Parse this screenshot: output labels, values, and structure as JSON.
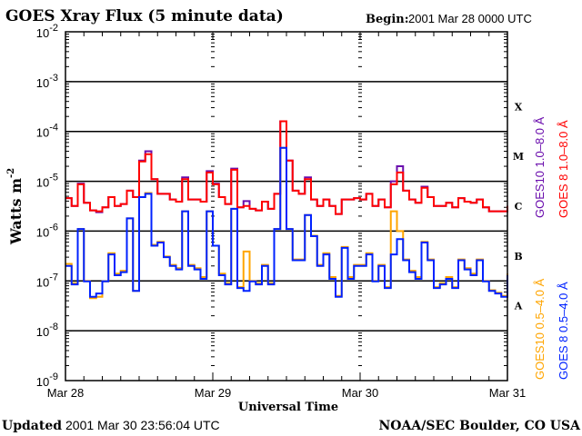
{
  "header": {
    "title": "GOES Xray Flux (5 minute data)",
    "begin_label": "Begin:",
    "begin_value": "2001 Mar 28 0000 UTC"
  },
  "footer": {
    "updated_label": "Updated",
    "updated_value": "2001 Mar 30 23:56:04 UTC",
    "credit": "NOAA/SEC Boulder, CO USA"
  },
  "chart_data": {
    "type": "line",
    "title": "GOES Xray Flux (5 minute data)",
    "xlabel": "Universal Time",
    "ylabel": "Watts m",
    "ylabel_sup": "-2",
    "yscale": "log",
    "ylim": [
      1e-09,
      0.01
    ],
    "ytick_base": "10",
    "ytick_exponents": [
      "-2",
      "-3",
      "-4",
      "-5",
      "-6",
      "-7",
      "-8",
      "-9"
    ],
    "xtick_labels": [
      "Mar 28",
      "Mar 29",
      "Mar 30",
      "Mar 31"
    ],
    "xlim": [
      "2001-03-28 00:00",
      "2001-03-31 00:00"
    ],
    "grid": "horizontal lines at each decade",
    "flare_classes": [
      "X",
      "M",
      "C",
      "B",
      "A"
    ],
    "x": [
      "03-28 00",
      "03-28 01",
      "03-28 02",
      "03-28 03",
      "03-28 04",
      "03-28 05",
      "03-28 06",
      "03-28 07",
      "03-28 08",
      "03-28 09",
      "03-28 10",
      "03-28 11",
      "03-28 12",
      "03-28 13",
      "03-28 14",
      "03-28 15",
      "03-28 16",
      "03-28 17",
      "03-28 18",
      "03-28 19",
      "03-28 20",
      "03-28 21",
      "03-28 22",
      "03-28 23",
      "03-29 00",
      "03-29 01",
      "03-29 02",
      "03-29 03",
      "03-29 04",
      "03-29 05",
      "03-29 06",
      "03-29 07",
      "03-29 08",
      "03-29 09",
      "03-29 10",
      "03-29 11",
      "03-29 12",
      "03-29 13",
      "03-29 14",
      "03-29 15",
      "03-29 16",
      "03-29 17",
      "03-29 18",
      "03-29 19",
      "03-29 20",
      "03-29 21",
      "03-29 22",
      "03-29 23",
      "03-30 00",
      "03-30 01",
      "03-30 02",
      "03-30 03",
      "03-30 04",
      "03-30 05",
      "03-30 06",
      "03-30 07",
      "03-30 08",
      "03-30 09",
      "03-30 10",
      "03-30 11",
      "03-30 12",
      "03-30 13",
      "03-30 14",
      "03-30 15",
      "03-30 16",
      "03-30 17",
      "03-30 18",
      "03-30 19",
      "03-30 20",
      "03-30 21",
      "03-30 22",
      "03-30 23",
      "03-31 00"
    ],
    "series": [
      {
        "name": "GOES10 1.0–8.0 Å",
        "color": "#6a0dad",
        "values": [
          4.6e-06,
          3.2e-06,
          9e-06,
          3.7e-06,
          2.6e-06,
          2.4e-06,
          3e-06,
          4.8e-06,
          3.2e-06,
          3.5e-06,
          6.5e-06,
          4.8e-06,
          2.6e-05,
          4e-05,
          1.1e-05,
          5.6e-06,
          5.6e-06,
          4.3e-06,
          3.9e-06,
          1.2e-05,
          4.3e-06,
          4.3e-06,
          3.9e-06,
          1.6e-05,
          9e-06,
          4.8e-06,
          3.5e-06,
          1.8e-05,
          3e-06,
          4e-06,
          2.8e-06,
          2.6e-06,
          3.9e-06,
          2.8e-06,
          5.6e-06,
          0.00016,
          2.6e-05,
          6.5e-06,
          5.6e-06,
          1.2e-05,
          4.3e-06,
          3.2e-06,
          4.3e-06,
          3.2e-06,
          2.2e-06,
          4.3e-06,
          4.3e-06,
          4.6e-06,
          4.3e-06,
          5.6e-06,
          3.2e-06,
          4.3e-06,
          3e-06,
          1e-05,
          2e-05,
          6.5e-06,
          4.3e-06,
          3.7e-06,
          7.8e-06,
          4.8e-06,
          3.2e-06,
          3.2e-06,
          3.7e-06,
          3e-06,
          4.6e-06,
          3.9e-06,
          3.7e-06,
          4.3e-06,
          3e-06,
          2.5e-06,
          2.5e-06,
          2.5e-06,
          3.2e-06
        ]
      },
      {
        "name": "GOES 8 1.0–8.0 Å",
        "color": "#ff0000",
        "values": [
          4.6e-06,
          3.2e-06,
          8.7e-06,
          3.7e-06,
          2.6e-06,
          2.5e-06,
          3e-06,
          4.8e-06,
          3.2e-06,
          3.5e-06,
          6.5e-06,
          4.8e-06,
          2.5e-05,
          3.5e-05,
          1.1e-05,
          5.6e-06,
          5.6e-06,
          4.3e-06,
          3.9e-06,
          1.1e-05,
          4.3e-06,
          4.3e-06,
          3.9e-06,
          1.5e-05,
          8.7e-06,
          4.8e-06,
          3.5e-06,
          1.7e-05,
          3e-06,
          3.2e-06,
          2.8e-06,
          2.6e-06,
          3.9e-06,
          2.8e-06,
          5.6e-06,
          0.00016,
          2.6e-05,
          6.5e-06,
          5.6e-06,
          1.1e-05,
          4.3e-06,
          3.2e-06,
          4.3e-06,
          3.2e-06,
          2.2e-06,
          4.3e-06,
          4.3e-06,
          4.6e-06,
          4.3e-06,
          5.6e-06,
          3.2e-06,
          4.3e-06,
          3e-06,
          8.7e-06,
          1.5e-05,
          6.5e-06,
          4.3e-06,
          3.7e-06,
          7.4e-06,
          4.8e-06,
          3.2e-06,
          3.2e-06,
          3.7e-06,
          3e-06,
          4.6e-06,
          3.9e-06,
          3.7e-06,
          4.3e-06,
          3e-06,
          2.5e-06,
          2.5e-06,
          2.5e-06,
          3.2e-06
        ]
      },
      {
        "name": "GOES10 0.5–4.0 Å",
        "color": "#ffa500",
        "values": [
          2.2e-07,
          9e-08,
          1.1e-06,
          1e-07,
          4.5e-08,
          4.8e-08,
          9.8e-08,
          3.6e-07,
          1.4e-07,
          1.6e-07,
          1.8e-06,
          6.3e-08,
          4.8e-06,
          5.8e-06,
          5.3e-07,
          6.1e-07,
          3.1e-07,
          2.1e-07,
          1.8e-07,
          2.5e-06,
          2.1e-07,
          1.8e-07,
          1.2e-07,
          2.5e-06,
          5.1e-07,
          1.4e-07,
          9e-08,
          2.8e-06,
          7.5e-08,
          3.9e-07,
          1e-07,
          9e-08,
          2.1e-07,
          9e-08,
          1.1e-06,
          4.7e-05,
          1.1e-06,
          2.7e-07,
          2.7e-07,
          2.1e-06,
          8.1e-07,
          2.1e-07,
          3.6e-07,
          1.2e-07,
          5e-08,
          4.8e-07,
          1.2e-07,
          2.1e-07,
          2.1e-07,
          3.6e-07,
          1e-07,
          2.1e-07,
          7.5e-08,
          2.5e-06,
          1e-06,
          2.7e-07,
          1.6e-07,
          1.2e-07,
          6.1e-07,
          2.7e-07,
          7.5e-08,
          9e-08,
          1.2e-07,
          7.5e-08,
          2.7e-07,
          1.8e-07,
          1.4e-07,
          2.7e-07,
          1e-07,
          6.5e-08,
          5.8e-08,
          5e-08,
          1.4e-07
        ]
      },
      {
        "name": "GOES 8 0.5–4.0 Å",
        "color": "#0022ff",
        "values": [
          2e-07,
          8.5e-08,
          1.1e-06,
          9.8e-08,
          4.8e-08,
          5.6e-08,
          9.8e-08,
          3.4e-07,
          1.3e-07,
          1.5e-07,
          1.8e-06,
          6.3e-08,
          4.8e-06,
          5.6e-06,
          5.1e-07,
          5.9e-07,
          3e-07,
          2e-07,
          1.7e-07,
          2.5e-06,
          2e-07,
          1.7e-07,
          1.1e-07,
          2.5e-06,
          5.1e-07,
          1.3e-07,
          8.5e-08,
          2.8e-06,
          7.2e-08,
          6.3e-08,
          9.8e-08,
          8.5e-08,
          2e-07,
          8.5e-08,
          1.1e-06,
          4.7e-05,
          1.1e-06,
          2.6e-07,
          2.6e-07,
          2.1e-06,
          7.9e-07,
          2e-07,
          3.4e-07,
          1.1e-07,
          4.8e-08,
          4.6e-07,
          1.1e-07,
          2e-07,
          2e-07,
          3.4e-07,
          9.8e-08,
          2e-07,
          7.2e-08,
          3.4e-07,
          6.9e-07,
          2.6e-07,
          1.5e-07,
          1.1e-07,
          5.9e-07,
          2.6e-07,
          7.2e-08,
          8.5e-08,
          1.1e-07,
          7.2e-08,
          2.6e-07,
          1.7e-07,
          1.3e-07,
          2.6e-07,
          9.8e-08,
          6.3e-08,
          5.6e-08,
          4.8e-08,
          1.3e-07
        ]
      }
    ]
  }
}
